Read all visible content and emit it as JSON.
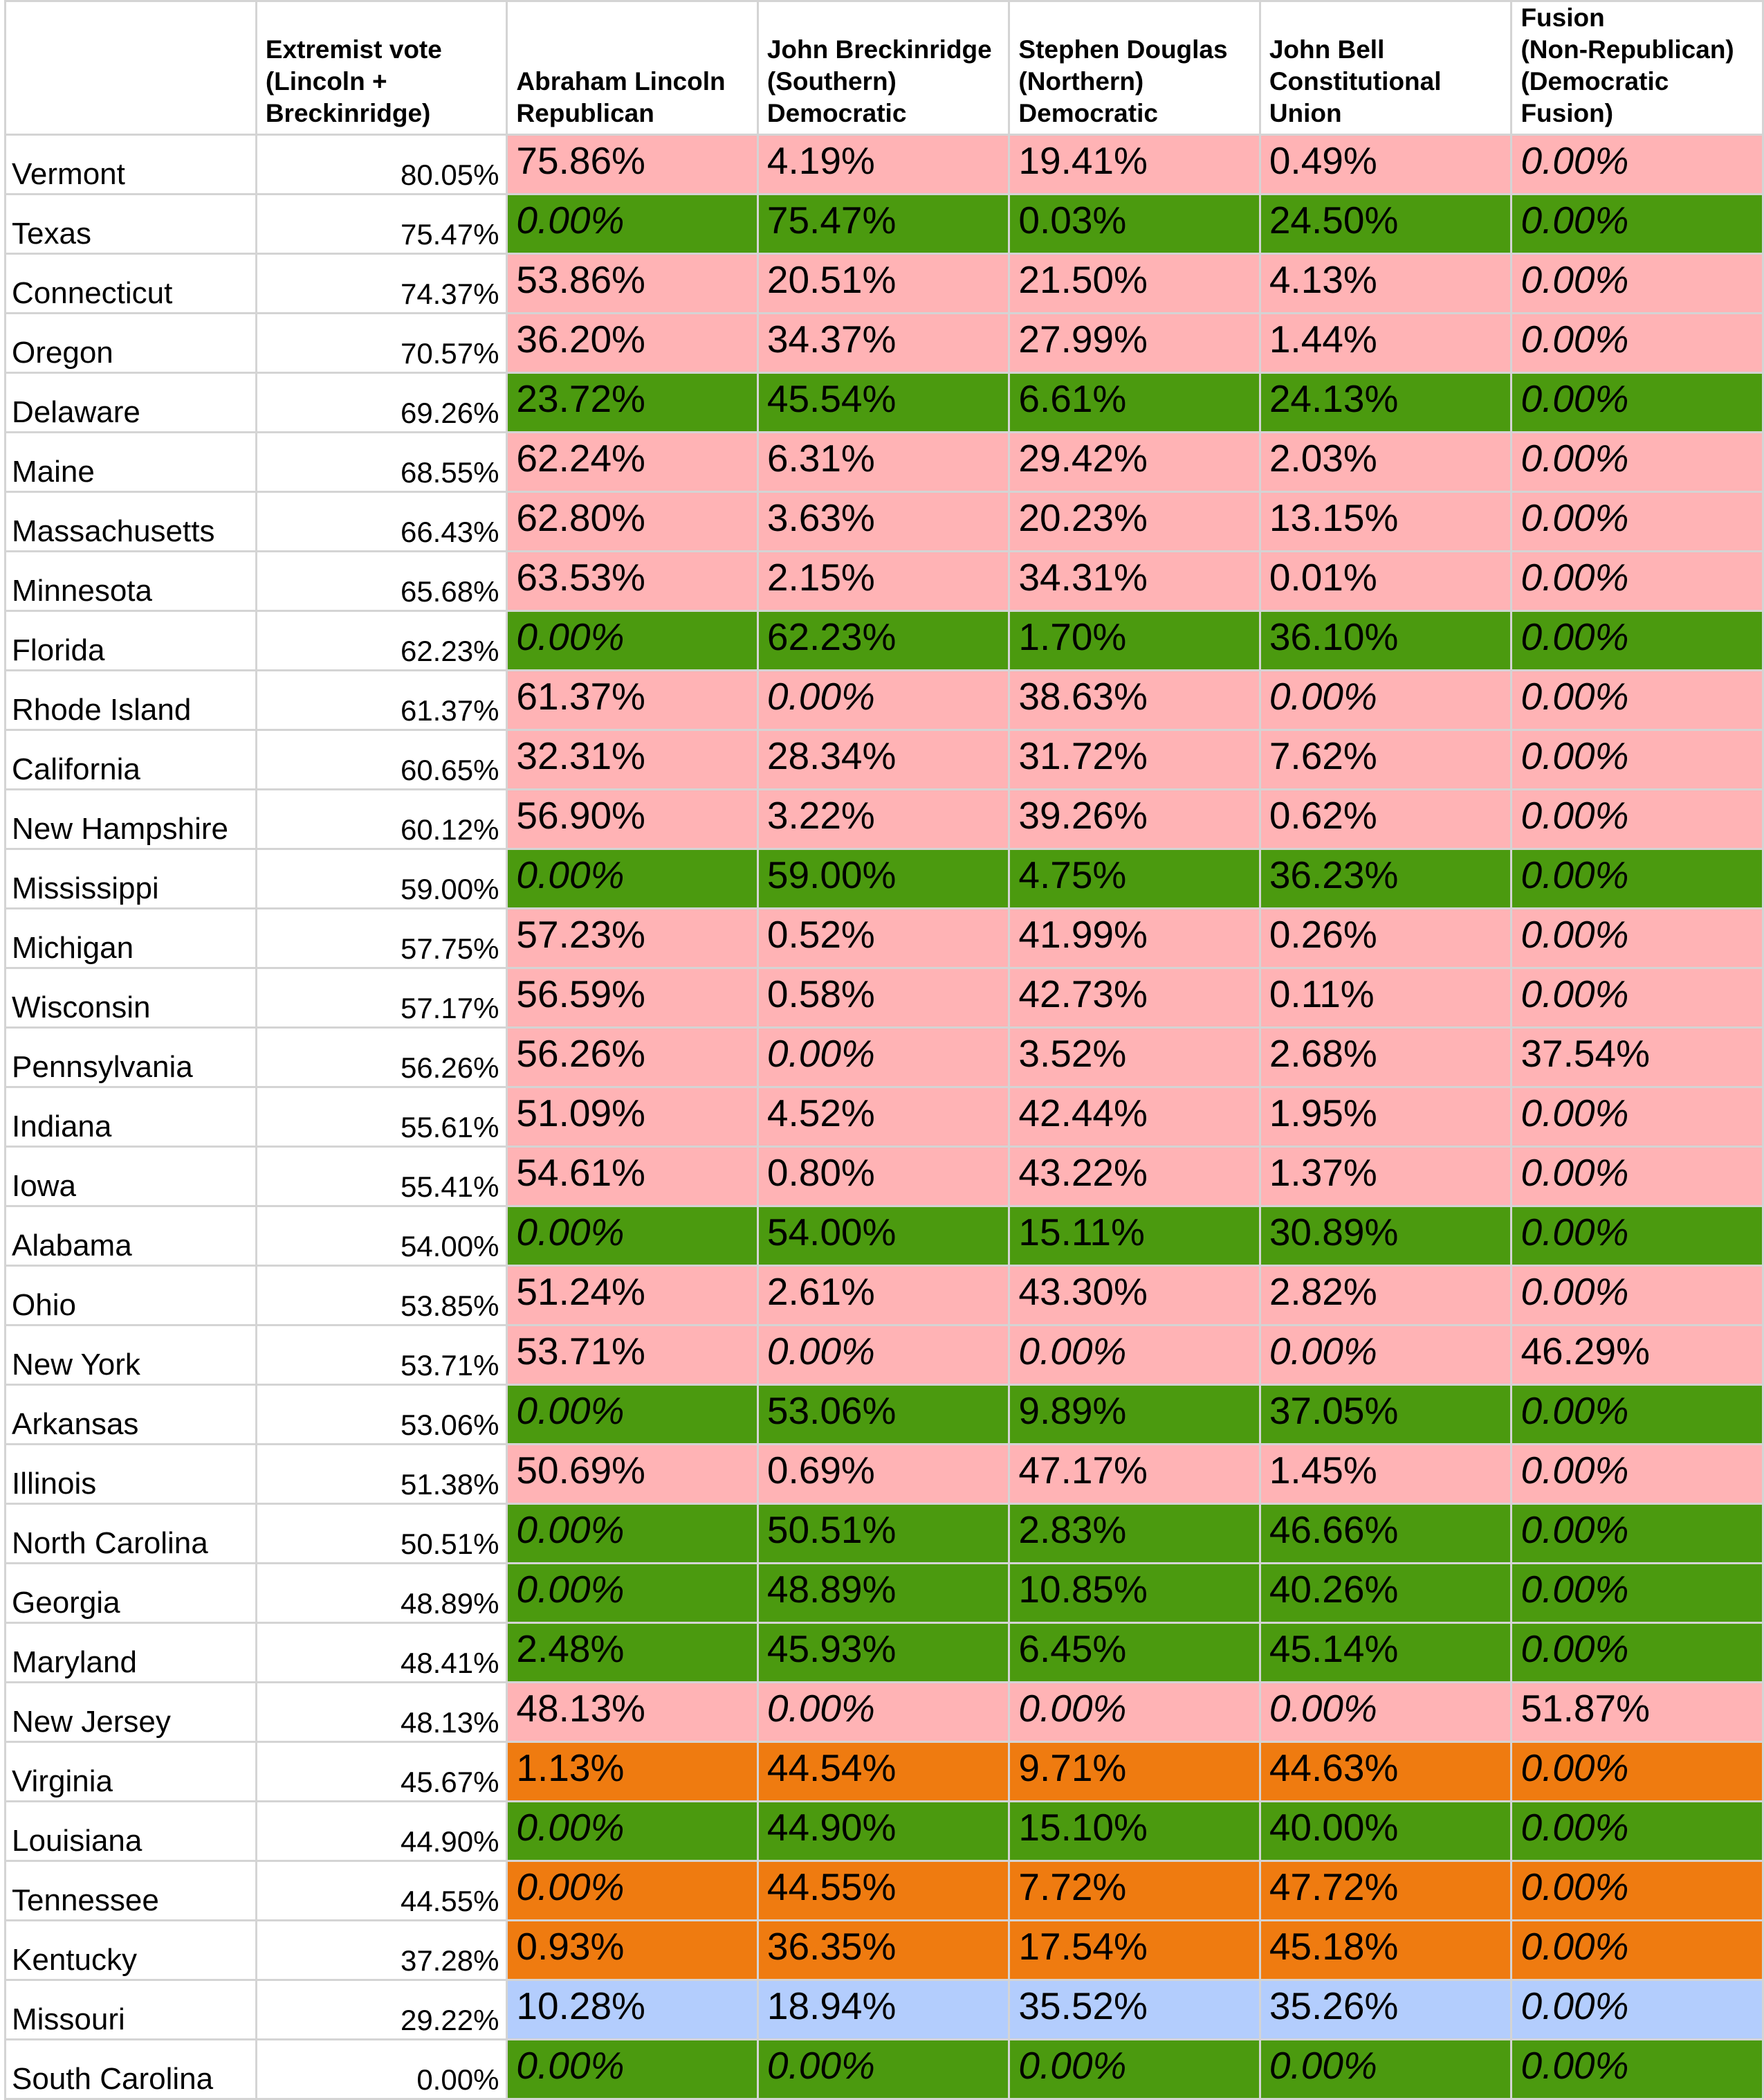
{
  "headers": {
    "state": "",
    "extremist": "Extremist vote\n(Lincoln +\nBreckinridge)",
    "lincoln": "Abraham Lincoln\nRepublican",
    "breckinridge": "John Breckinridge\n(Southern)\nDemocratic",
    "douglas": "Stephen Douglas\n(Northern)\nDemocratic",
    "bell": "John Bell\nConstitutional\nUnion",
    "fusion": "Fusion\n(Non-Republican)\n(Democratic\nFusion)"
  },
  "colors": {
    "pink": "#ffb3b5",
    "green": "#4b9a0f",
    "orange": "#ef7b10",
    "blue": "#b3cdfd",
    "grid": "#d4d4d4"
  },
  "rows": [
    {
      "state": "Vermont",
      "extremist": "80.05%",
      "lincoln": "75.86%",
      "breckinridge": "4.19%",
      "douglas": "19.41%",
      "bell": "0.49%",
      "fusion": "0.00%",
      "color": "pink"
    },
    {
      "state": "Texas",
      "extremist": "75.47%",
      "lincoln": "0.00%",
      "breckinridge": "75.47%",
      "douglas": "0.03%",
      "bell": "24.50%",
      "fusion": "0.00%",
      "color": "green"
    },
    {
      "state": "Connecticut",
      "extremist": "74.37%",
      "lincoln": "53.86%",
      "breckinridge": "20.51%",
      "douglas": "21.50%",
      "bell": "4.13%",
      "fusion": "0.00%",
      "color": "pink"
    },
    {
      "state": "Oregon",
      "extremist": "70.57%",
      "lincoln": "36.20%",
      "breckinridge": "34.37%",
      "douglas": "27.99%",
      "bell": "1.44%",
      "fusion": "0.00%",
      "color": "pink"
    },
    {
      "state": "Delaware",
      "extremist": "69.26%",
      "lincoln": "23.72%",
      "breckinridge": "45.54%",
      "douglas": "6.61%",
      "bell": "24.13%",
      "fusion": "0.00%",
      "color": "green"
    },
    {
      "state": "Maine",
      "extremist": "68.55%",
      "lincoln": "62.24%",
      "breckinridge": "6.31%",
      "douglas": "29.42%",
      "bell": "2.03%",
      "fusion": "0.00%",
      "color": "pink"
    },
    {
      "state": "Massachusetts",
      "extremist": "66.43%",
      "lincoln": "62.80%",
      "breckinridge": "3.63%",
      "douglas": "20.23%",
      "bell": "13.15%",
      "fusion": "0.00%",
      "color": "pink"
    },
    {
      "state": "Minnesota",
      "extremist": "65.68%",
      "lincoln": "63.53%",
      "breckinridge": "2.15%",
      "douglas": "34.31%",
      "bell": "0.01%",
      "fusion": "0.00%",
      "color": "pink"
    },
    {
      "state": "Florida",
      "extremist": "62.23%",
      "lincoln": "0.00%",
      "breckinridge": "62.23%",
      "douglas": "1.70%",
      "bell": "36.10%",
      "fusion": "0.00%",
      "color": "green"
    },
    {
      "state": "Rhode Island",
      "extremist": "61.37%",
      "lincoln": "61.37%",
      "breckinridge": "0.00%",
      "douglas": "38.63%",
      "bell": "0.00%",
      "fusion": "0.00%",
      "color": "pink"
    },
    {
      "state": "California",
      "extremist": "60.65%",
      "lincoln": "32.31%",
      "breckinridge": "28.34%",
      "douglas": "31.72%",
      "bell": "7.62%",
      "fusion": "0.00%",
      "color": "pink"
    },
    {
      "state": "New Hampshire",
      "extremist": "60.12%",
      "lincoln": "56.90%",
      "breckinridge": "3.22%",
      "douglas": "39.26%",
      "bell": "0.62%",
      "fusion": "0.00%",
      "color": "pink"
    },
    {
      "state": "Mississippi",
      "extremist": "59.00%",
      "lincoln": "0.00%",
      "breckinridge": "59.00%",
      "douglas": "4.75%",
      "bell": "36.23%",
      "fusion": "0.00%",
      "color": "green"
    },
    {
      "state": "Michigan",
      "extremist": "57.75%",
      "lincoln": "57.23%",
      "breckinridge": "0.52%",
      "douglas": "41.99%",
      "bell": "0.26%",
      "fusion": "0.00%",
      "color": "pink"
    },
    {
      "state": "Wisconsin",
      "extremist": "57.17%",
      "lincoln": "56.59%",
      "breckinridge": "0.58%",
      "douglas": "42.73%",
      "bell": "0.11%",
      "fusion": "0.00%",
      "color": "pink"
    },
    {
      "state": "Pennsylvania",
      "extremist": "56.26%",
      "lincoln": "56.26%",
      "breckinridge": "0.00%",
      "douglas": "3.52%",
      "bell": "2.68%",
      "fusion": "37.54%",
      "color": "pink"
    },
    {
      "state": "Indiana",
      "extremist": "55.61%",
      "lincoln": "51.09%",
      "breckinridge": "4.52%",
      "douglas": "42.44%",
      "bell": "1.95%",
      "fusion": "0.00%",
      "color": "pink"
    },
    {
      "state": "Iowa",
      "extremist": "55.41%",
      "lincoln": "54.61%",
      "breckinridge": "0.80%",
      "douglas": "43.22%",
      "bell": "1.37%",
      "fusion": "0.00%",
      "color": "pink"
    },
    {
      "state": "Alabama",
      "extremist": "54.00%",
      "lincoln": "0.00%",
      "breckinridge": "54.00%",
      "douglas": "15.11%",
      "bell": "30.89%",
      "fusion": "0.00%",
      "color": "green"
    },
    {
      "state": "Ohio",
      "extremist": "53.85%",
      "lincoln": "51.24%",
      "breckinridge": "2.61%",
      "douglas": "43.30%",
      "bell": "2.82%",
      "fusion": "0.00%",
      "color": "pink"
    },
    {
      "state": "New York",
      "extremist": "53.71%",
      "lincoln": "53.71%",
      "breckinridge": "0.00%",
      "douglas": "0.00%",
      "bell": "0.00%",
      "fusion": "46.29%",
      "color": "pink"
    },
    {
      "state": "Arkansas",
      "extremist": "53.06%",
      "lincoln": "0.00%",
      "breckinridge": "53.06%",
      "douglas": "9.89%",
      "bell": "37.05%",
      "fusion": "0.00%",
      "color": "green"
    },
    {
      "state": "Illinois",
      "extremist": "51.38%",
      "lincoln": "50.69%",
      "breckinridge": "0.69%",
      "douglas": "47.17%",
      "bell": "1.45%",
      "fusion": "0.00%",
      "color": "pink"
    },
    {
      "state": "North Carolina",
      "extremist": "50.51%",
      "lincoln": "0.00%",
      "breckinridge": "50.51%",
      "douglas": "2.83%",
      "bell": "46.66%",
      "fusion": "0.00%",
      "color": "green"
    },
    {
      "state": "Georgia",
      "extremist": "48.89%",
      "lincoln": "0.00%",
      "breckinridge": "48.89%",
      "douglas": "10.85%",
      "bell": "40.26%",
      "fusion": "0.00%",
      "color": "green"
    },
    {
      "state": "Maryland",
      "extremist": "48.41%",
      "lincoln": "2.48%",
      "breckinridge": "45.93%",
      "douglas": "6.45%",
      "bell": "45.14%",
      "fusion": "0.00%",
      "color": "green"
    },
    {
      "state": "New Jersey",
      "extremist": "48.13%",
      "lincoln": "48.13%",
      "breckinridge": "0.00%",
      "douglas": "0.00%",
      "bell": "0.00%",
      "fusion": "51.87%",
      "color": "pink"
    },
    {
      "state": "Virginia",
      "extremist": "45.67%",
      "lincoln": "1.13%",
      "breckinridge": "44.54%",
      "douglas": "9.71%",
      "bell": "44.63%",
      "fusion": "0.00%",
      "color": "orange"
    },
    {
      "state": "Louisiana",
      "extremist": "44.90%",
      "lincoln": "0.00%",
      "breckinridge": "44.90%",
      "douglas": "15.10%",
      "bell": "40.00%",
      "fusion": "0.00%",
      "color": "green"
    },
    {
      "state": "Tennessee",
      "extremist": "44.55%",
      "lincoln": "0.00%",
      "breckinridge": "44.55%",
      "douglas": "7.72%",
      "bell": "47.72%",
      "fusion": "0.00%",
      "color": "orange"
    },
    {
      "state": "Kentucky",
      "extremist": "37.28%",
      "lincoln": "0.93%",
      "breckinridge": "36.35%",
      "douglas": "17.54%",
      "bell": "45.18%",
      "fusion": "0.00%",
      "color": "orange"
    },
    {
      "state": "Missouri",
      "extremist": "29.22%",
      "lincoln": "10.28%",
      "breckinridge": "18.94%",
      "douglas": "35.52%",
      "bell": "35.26%",
      "fusion": "0.00%",
      "color": "blue"
    },
    {
      "state": "South Carolina",
      "extremist": "0.00%",
      "lincoln": "0.00%",
      "breckinridge": "0.00%",
      "douglas": "0.00%",
      "bell": "0.00%",
      "fusion": "0.00%",
      "color": "green"
    }
  ]
}
